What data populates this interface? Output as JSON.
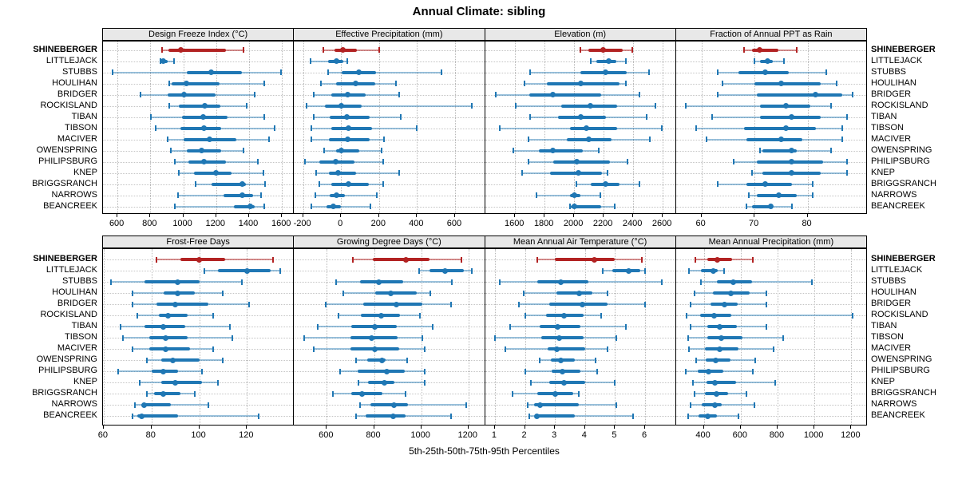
{
  "title": "Annual Climate: sibling",
  "caption": "5th-25th-50th-75th-95th Percentiles",
  "highlight_station": "SHINEBERGER",
  "stations": [
    "SHINEBERGER",
    "LITTLEJACK",
    "STUBBS",
    "HOULIHAN",
    "BRIDGER",
    "ROCKISLAND",
    "TIBAN",
    "TIBSON",
    "MACIVER",
    "OWENSPRING",
    "PHILIPSBURG",
    "KNEP",
    "BRIGGSRANCH",
    "NARROWS",
    "BEANCREEK"
  ],
  "colors": {
    "highlight": "#b22222",
    "normal": "#1f77b4",
    "grid": "#c4c4c4",
    "strip_bg": "#e8e8e8",
    "border": "#000000"
  },
  "chart_data": {
    "type": "trellis-percentile-dotplot",
    "percentiles": [
      5,
      25,
      50,
      75,
      95
    ],
    "grid": "dotted",
    "legend_position": "none",
    "panels": [
      {
        "title": "Design Freeze Index (°C)",
        "grid_row": 0,
        "grid_col": 0,
        "xlim": [
          512,
          1673
        ],
        "ticks": [
          600,
          800,
          1000,
          1200,
          1400,
          1600
        ],
        "values": [
          [
            870,
            910,
            985,
            1260,
            1365
          ],
          [
            860,
            865,
            880,
            905,
            945
          ],
          [
            570,
            1020,
            1170,
            1355,
            1595
          ],
          [
            915,
            930,
            1020,
            1220,
            1490
          ],
          [
            740,
            905,
            1005,
            1195,
            1435
          ],
          [
            915,
            975,
            1130,
            1225,
            1385
          ],
          [
            805,
            990,
            1120,
            1270,
            1490
          ],
          [
            830,
            985,
            1125,
            1230,
            1555
          ],
          [
            905,
            1000,
            1160,
            1320,
            1520
          ],
          [
            925,
            1020,
            1110,
            1230,
            1365
          ],
          [
            950,
            1030,
            1125,
            1260,
            1455
          ],
          [
            975,
            1065,
            1200,
            1295,
            1485
          ],
          [
            1075,
            1170,
            1360,
            1380,
            1495
          ],
          [
            970,
            1245,
            1360,
            1425,
            1475
          ],
          [
            950,
            1310,
            1405,
            1435,
            1490
          ]
        ]
      },
      {
        "title": "Effective Precipitation (mm)",
        "grid_row": 0,
        "grid_col": 1,
        "xlim": [
          -248,
          758
        ],
        "ticks": [
          -200,
          0,
          200,
          400,
          600
        ],
        "values": [
          [
            -95,
            -35,
            10,
            85,
            200
          ],
          [
            -160,
            -67,
            -26,
            11,
            32
          ],
          [
            -70,
            5,
            95,
            185,
            530
          ],
          [
            -105,
            -25,
            75,
            180,
            290
          ],
          [
            -145,
            -50,
            35,
            130,
            305
          ],
          [
            -180,
            -85,
            0,
            110,
            690
          ],
          [
            -145,
            -60,
            30,
            150,
            315
          ],
          [
            -155,
            -50,
            40,
            165,
            400
          ],
          [
            -155,
            -65,
            35,
            150,
            225
          ],
          [
            -90,
            -25,
            0,
            95,
            215
          ],
          [
            -190,
            -115,
            -30,
            70,
            220
          ],
          [
            -130,
            -65,
            -15,
            80,
            305
          ],
          [
            -115,
            -50,
            40,
            145,
            220
          ],
          [
            -135,
            -60,
            -25,
            20,
            190
          ],
          [
            -155,
            -75,
            -40,
            0,
            155
          ]
        ]
      },
      {
        "title": "Elevation (m)",
        "grid_row": 0,
        "grid_col": 2,
        "xlim": [
          1396,
          2690
        ],
        "ticks": [
          1600,
          1800,
          2000,
          2200,
          2400,
          2600
        ],
        "values": [
          [
            2040,
            2095,
            2195,
            2330,
            2395
          ],
          [
            2115,
            2150,
            2235,
            2285,
            2350
          ],
          [
            1700,
            2045,
            2210,
            2355,
            2505
          ],
          [
            1665,
            1815,
            2045,
            2305,
            2350
          ],
          [
            1470,
            1695,
            1855,
            2185,
            2445
          ],
          [
            1605,
            1915,
            2110,
            2290,
            2550
          ],
          [
            1700,
            1890,
            2045,
            2215,
            2490
          ],
          [
            1495,
            1970,
            2085,
            2290,
            2595
          ],
          [
            1690,
            1950,
            2100,
            2255,
            2515
          ],
          [
            1590,
            1760,
            1855,
            2060,
            2165
          ],
          [
            1690,
            1860,
            2020,
            2245,
            2360
          ],
          [
            1650,
            1835,
            2030,
            2190,
            2225
          ],
          [
            2015,
            2115,
            2215,
            2305,
            2440
          ],
          [
            1745,
            1970,
            2000,
            2045,
            2180
          ],
          [
            1970,
            1975,
            2000,
            2185,
            2275
          ]
        ]
      },
      {
        "title": "Fraction of Annual PPT as Rain",
        "grid_row": 0,
        "grid_col": 3,
        "xlim": [
          55.2,
          91.2
        ],
        "ticks": [
          60,
          70,
          80
        ],
        "values": [
          [
            68,
            69.5,
            71,
            74.5,
            78
          ],
          [
            70,
            71,
            72.5,
            73.5,
            75.5
          ],
          [
            63,
            67,
            72,
            76.5,
            83.5
          ],
          [
            64,
            70,
            75,
            82.5,
            85.5
          ],
          [
            63,
            70.5,
            81.5,
            86.5,
            88.5
          ],
          [
            57,
            71,
            76,
            80.5,
            84.5
          ],
          [
            62,
            71,
            77,
            82.5,
            87.5
          ],
          [
            59,
            68,
            76,
            81.5,
            86.5
          ],
          [
            61,
            68.5,
            75,
            79,
            86.5
          ],
          [
            71,
            71.5,
            77,
            78,
            84.5
          ],
          [
            66,
            70.5,
            77,
            83,
            87.5
          ],
          [
            69.5,
            71.5,
            77,
            82.5,
            87.5
          ],
          [
            63,
            68.5,
            72,
            77,
            81
          ],
          [
            69,
            70.5,
            74.5,
            78,
            81
          ],
          [
            68.5,
            69.5,
            73,
            73.5,
            77
          ]
        ]
      },
      {
        "title": "Frost-Free Days",
        "grid_row": 1,
        "grid_col": 0,
        "xlim": [
          59.7,
          139.7
        ],
        "ticks": [
          60,
          80,
          100,
          120
        ],
        "values": [
          [
            82,
            92,
            100,
            111,
            131
          ],
          [
            102,
            108,
            120,
            130,
            134
          ],
          [
            63,
            77,
            91,
            100,
            118
          ],
          [
            72,
            85,
            91,
            98,
            110
          ],
          [
            72,
            82,
            90,
            104,
            121
          ],
          [
            74,
            83,
            87,
            95,
            106
          ],
          [
            67,
            77,
            85,
            94,
            113
          ],
          [
            68,
            79,
            86,
            95,
            114
          ],
          [
            72,
            79,
            86,
            96,
            106
          ],
          [
            78,
            84,
            89,
            100,
            110
          ],
          [
            66,
            80,
            85,
            91,
            101
          ],
          [
            75,
            84,
            90,
            101,
            108
          ],
          [
            78,
            81,
            85,
            92,
            98
          ],
          [
            73,
            76,
            77,
            88,
            104
          ],
          [
            72,
            74,
            76,
            91,
            125
          ]
        ]
      },
      {
        "title": "Growing Degree Days (°C)",
        "grid_row": 1,
        "grid_col": 1,
        "xlim": [
          461,
          1270
        ],
        "ticks": [
          600,
          800,
          1000,
          1200
        ],
        "values": [
          [
            710,
            795,
            935,
            1035,
            1170
          ],
          [
            990,
            1035,
            1100,
            1180,
            1215
          ],
          [
            640,
            740,
            820,
            925,
            1130
          ],
          [
            670,
            805,
            870,
            980,
            1040
          ],
          [
            595,
            755,
            895,
            1005,
            1125
          ],
          [
            650,
            745,
            830,
            910,
            995
          ],
          [
            560,
            705,
            805,
            895,
            1050
          ],
          [
            505,
            700,
            790,
            900,
            1005
          ],
          [
            545,
            700,
            805,
            905,
            1015
          ],
          [
            725,
            770,
            835,
            850,
            940
          ],
          [
            655,
            730,
            855,
            930,
            1015
          ],
          [
            735,
            775,
            845,
            885,
            1015
          ],
          [
            625,
            705,
            750,
            835,
            935
          ],
          [
            740,
            785,
            885,
            945,
            1190
          ],
          [
            725,
            765,
            880,
            935,
            1125
          ]
        ]
      },
      {
        "title": "Mean Annual Air Temperature (°C)",
        "grid_row": 1,
        "grid_col": 2,
        "xlim": [
          0.67,
          7.03
        ],
        "ticks": [
          1,
          2,
          3,
          4,
          5,
          6
        ],
        "values": [
          [
            2.4,
            3.0,
            4.3,
            5.0,
            5.9
          ],
          [
            4.6,
            4.9,
            5.45,
            5.85,
            6.0
          ],
          [
            1.15,
            2.4,
            3.2,
            4.1,
            6.55
          ],
          [
            1.95,
            3.05,
            3.8,
            4.25,
            4.75
          ],
          [
            1.8,
            2.8,
            3.9,
            4.75,
            6.0
          ],
          [
            2.0,
            2.7,
            3.3,
            3.95,
            4.55
          ],
          [
            1.5,
            2.5,
            3.1,
            3.85,
            5.35
          ],
          [
            1.0,
            2.55,
            3.15,
            3.95,
            5.05
          ],
          [
            1.35,
            2.75,
            3.05,
            4.0,
            4.75
          ],
          [
            2.5,
            2.85,
            3.2,
            3.65,
            4.35
          ],
          [
            2.0,
            2.9,
            3.25,
            3.85,
            4.4
          ],
          [
            2.2,
            2.8,
            3.3,
            4.0,
            5.0
          ],
          [
            1.6,
            2.4,
            3.0,
            3.6,
            3.8
          ],
          [
            2.1,
            2.3,
            2.5,
            3.8,
            5.05
          ],
          [
            2.15,
            2.35,
            2.4,
            3.65,
            5.6
          ]
        ]
      },
      {
        "title": "Mean Annual Precipitation (mm)",
        "grid_row": 1,
        "grid_col": 3,
        "xlim": [
          249,
          1285
        ],
        "ticks": [
          400,
          600,
          800,
          1000,
          1200
        ],
        "values": [
          [
            355,
            420,
            475,
            555,
            665
          ],
          [
            320,
            385,
            450,
            475,
            510
          ],
          [
            385,
            470,
            560,
            660,
            985
          ],
          [
            350,
            450,
            545,
            650,
            740
          ],
          [
            330,
            435,
            510,
            585,
            740
          ],
          [
            305,
            380,
            455,
            550,
            1205
          ],
          [
            330,
            420,
            485,
            580,
            740
          ],
          [
            315,
            420,
            495,
            610,
            830
          ],
          [
            320,
            405,
            485,
            590,
            780
          ],
          [
            360,
            410,
            465,
            545,
            680
          ],
          [
            300,
            365,
            425,
            505,
            665
          ],
          [
            340,
            415,
            460,
            575,
            785
          ],
          [
            350,
            405,
            470,
            530,
            630
          ],
          [
            330,
            390,
            460,
            495,
            675
          ],
          [
            315,
            370,
            420,
            470,
            590
          ]
        ]
      }
    ]
  }
}
